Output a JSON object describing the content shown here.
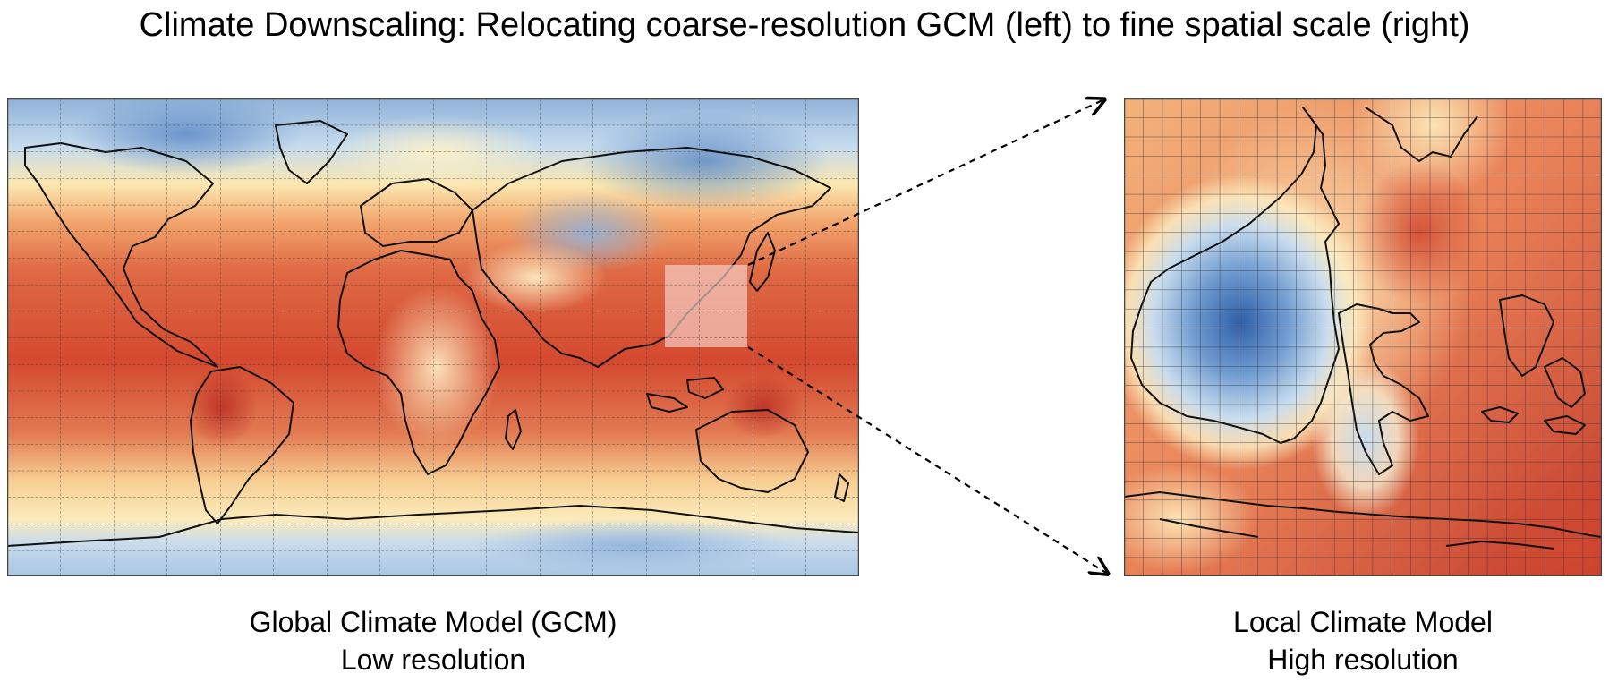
{
  "title": "Climate Downscaling: Relocating coarse-resolution GCM (left) to fine spatial scale (right)",
  "global_panel": {
    "caption_line1": "Global Climate Model (GCM)",
    "caption_line2": "Low resolution"
  },
  "local_panel": {
    "caption_line1": "Local Climate Model",
    "caption_line2": "High resolution"
  },
  "colors": {
    "warm": "#d0462f",
    "mid": "#fbe7b0",
    "cool": "#3f6fb2",
    "grid": "#333333",
    "coastline": "#111111",
    "highlight": "#f4c9c0"
  },
  "icons": [
    "arrow-icon"
  ]
}
